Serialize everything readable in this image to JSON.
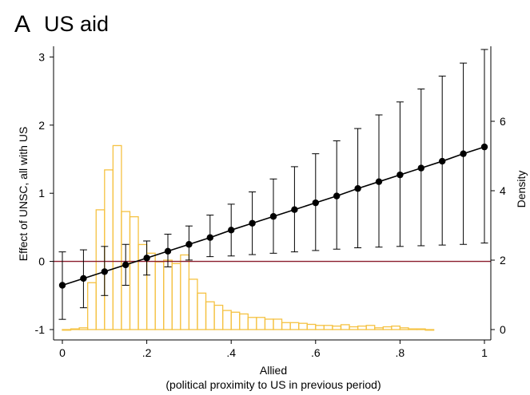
{
  "panel": {
    "letter": "A",
    "title": "US aid"
  },
  "chart_data": {
    "type": "line",
    "title": "US aid",
    "xlabel": "Allied",
    "xlabel_sub": "(political proximity to US in previous period)",
    "ylabel_left": "Effect of UNSC, all with US",
    "ylabel_right": "Density",
    "xlim": [
      0,
      1
    ],
    "ylim_left": [
      -1,
      3.2
    ],
    "ylim_right": [
      -0.15,
      8
    ],
    "x_ticks": [
      0,
      0.2,
      0.4,
      0.6,
      0.8,
      1
    ],
    "x_tick_labels": [
      "0",
      ".2",
      ".4",
      ".6",
      ".8",
      "1"
    ],
    "y_ticks_left": [
      -1,
      0,
      1,
      2,
      3
    ],
    "y_tick_labels_left": [
      "-1",
      "0",
      "1",
      "2",
      "3"
    ],
    "y_ticks_right": [
      0,
      2,
      4,
      6
    ],
    "y_tick_labels_right": [
      "0",
      "2",
      "4",
      "6"
    ],
    "reference_line": {
      "y": 0,
      "color": "#8b1c2c"
    },
    "colors": {
      "effect": "#000000",
      "histogram": "#f5c242"
    },
    "series": [
      {
        "type": "line_with_ci",
        "x": [
          0,
          0.05,
          0.1,
          0.15,
          0.2,
          0.25,
          0.3,
          0.35,
          0.4,
          0.45,
          0.5,
          0.55,
          0.6,
          0.65,
          0.7,
          0.75,
          0.8,
          0.85,
          0.9,
          0.95,
          1
        ],
        "y": [
          -0.35,
          -0.25,
          -0.15,
          -0.05,
          0.05,
          0.15,
          0.25,
          0.35,
          0.46,
          0.56,
          0.66,
          0.76,
          0.86,
          0.96,
          1.07,
          1.17,
          1.27,
          1.37,
          1.47,
          1.58,
          1.68
        ],
        "ci_low": [
          -0.85,
          -0.68,
          -0.5,
          -0.35,
          -0.2,
          -0.08,
          0.02,
          0.07,
          0.08,
          0.1,
          0.12,
          0.14,
          0.16,
          0.18,
          0.2,
          0.21,
          0.22,
          0.23,
          0.24,
          0.25,
          0.27
        ],
        "ci_high": [
          0.14,
          0.17,
          0.22,
          0.25,
          0.3,
          0.4,
          0.52,
          0.68,
          0.84,
          1.02,
          1.21,
          1.39,
          1.58,
          1.77,
          1.95,
          2.15,
          2.34,
          2.53,
          2.72,
          2.91,
          3.11
        ]
      },
      {
        "type": "histogram",
        "bin_width": 0.02,
        "bin_starts": [
          0,
          0.02,
          0.04,
          0.06,
          0.08,
          0.1,
          0.12,
          0.14,
          0.16,
          0.18,
          0.2,
          0.22,
          0.24,
          0.26,
          0.28,
          0.3,
          0.32,
          0.34,
          0.36,
          0.38,
          0.4,
          0.42,
          0.44,
          0.46,
          0.48,
          0.5,
          0.52,
          0.54,
          0.56,
          0.58,
          0.6,
          0.62,
          0.64,
          0.66,
          0.68,
          0.7,
          0.72,
          0.74,
          0.76,
          0.78,
          0.8,
          0.82,
          0.84,
          0.86
        ],
        "density": [
          0,
          0.02,
          0.05,
          1.35,
          3.45,
          4.6,
          5.3,
          3.4,
          3.25,
          2.45,
          2.2,
          1.95,
          2.0,
          1.9,
          2.15,
          1.45,
          1.05,
          0.8,
          0.7,
          0.55,
          0.5,
          0.45,
          0.35,
          0.35,
          0.3,
          0.3,
          0.2,
          0.2,
          0.18,
          0.15,
          0.12,
          0.12,
          0.1,
          0.14,
          0.08,
          0.1,
          0.12,
          0.05,
          0.08,
          0.1,
          0.05,
          0.02,
          0.02,
          0
        ]
      }
    ]
  }
}
